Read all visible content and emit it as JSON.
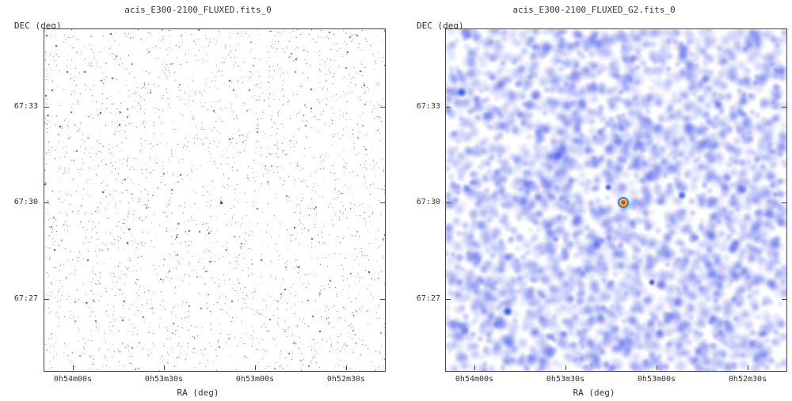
{
  "panels": [
    {
      "title": "acis_E300-2100_FLUXED.fits_0",
      "ylabel": "DEC (deg)",
      "xlabel": "RA (deg)",
      "yticks": [
        "67:33",
        "67:30",
        "67:27"
      ],
      "xticks": [
        "0h54m00s",
        "0h53m30s",
        "0h53m00s",
        "0h52m30s"
      ],
      "style": "sparse"
    },
    {
      "title": "acis_E300-2100_FLUXED_G2.fits_0",
      "ylabel": "DEC (deg)",
      "xlabel": "RA (deg)",
      "yticks": [
        "67:33",
        "67:30",
        "67:27"
      ],
      "xticks": [
        "0h54m00s",
        "0h53m30s",
        "0h53m00s",
        "0h52m30s"
      ],
      "style": "smoothed"
    }
  ],
  "colors": {
    "sparse_point": "#2b2bd6",
    "smooth_low": "#b8c0f0",
    "smooth_high": "#1f2fe0",
    "source_core": "#ff3b1a",
    "source_ring": "#f2e21a"
  }
}
